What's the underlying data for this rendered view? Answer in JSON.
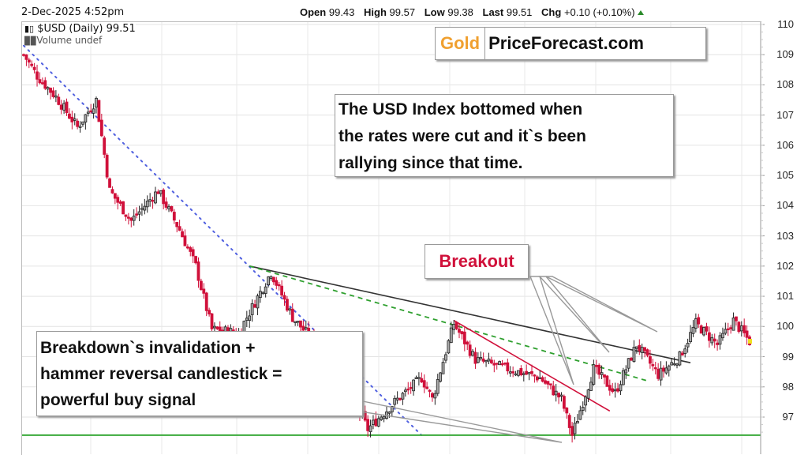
{
  "header": {
    "date": "2-Dec-2025 4:52pm",
    "open_label": "Open",
    "open": "99.43",
    "high_label": "High",
    "high": "99.57",
    "low_label": "Low",
    "low": "99.38",
    "last_label": "Last",
    "last": "99.51",
    "chg_label": "Chg",
    "chg": "+0.10 (+0.10%)"
  },
  "legend": {
    "symbol_line": "$USD (Daily) 99.51",
    "volume_line": "Volume undef"
  },
  "brand": {
    "gold": "Gold",
    "rest": "PriceForecast.com"
  },
  "annotations": {
    "note_top": [
      "The USD Index bottomed when",
      "the rates were cut and it`s been",
      "rallying since that time."
    ],
    "note_bottom": [
      "Breakdown`s invalidation +",
      "hammer reversal candlestick =",
      "powerful buy signal"
    ],
    "breakout": "Breakout"
  },
  "colors": {
    "up": "#222222",
    "down": "#d0103a",
    "brand_gold": "#f0a030",
    "support": "#3aaa3a",
    "trend_green": "#2fa02f",
    "trend_blue": "#5060e0"
  },
  "chart_data": {
    "type": "candlestick",
    "title": "$USD (Daily)",
    "last": 99.51,
    "ylabel": "",
    "ylim": [
      96.3,
      110.1
    ],
    "yticks": [
      110,
      109,
      108,
      107,
      106,
      105,
      104,
      103,
      102,
      101,
      100,
      99,
      98,
      97
    ],
    "grid": true,
    "approx_close_path": [
      {
        "i": 0,
        "v": 109.0
      },
      {
        "i": 5,
        "v": 108.3
      },
      {
        "i": 12,
        "v": 107.6
      },
      {
        "i": 20,
        "v": 106.6
      },
      {
        "i": 27,
        "v": 107.5
      },
      {
        "i": 32,
        "v": 104.5
      },
      {
        "i": 40,
        "v": 103.5
      },
      {
        "i": 50,
        "v": 104.5
      },
      {
        "i": 58,
        "v": 103.2
      },
      {
        "i": 64,
        "v": 102.0
      },
      {
        "i": 70,
        "v": 99.9
      },
      {
        "i": 80,
        "v": 99.8
      },
      {
        "i": 92,
        "v": 101.8
      },
      {
        "i": 100,
        "v": 100.3
      },
      {
        "i": 108,
        "v": 99.5
      },
      {
        "i": 118,
        "v": 98.4
      },
      {
        "i": 128,
        "v": 96.6
      },
      {
        "i": 138,
        "v": 97.5
      },
      {
        "i": 148,
        "v": 98.3
      },
      {
        "i": 152,
        "v": 97.6
      },
      {
        "i": 160,
        "v": 100.1
      },
      {
        "i": 168,
        "v": 98.9
      },
      {
        "i": 180,
        "v": 98.6
      },
      {
        "i": 192,
        "v": 98.3
      },
      {
        "i": 200,
        "v": 97.6
      },
      {
        "i": 204,
        "v": 96.4
      },
      {
        "i": 212,
        "v": 98.6
      },
      {
        "i": 220,
        "v": 97.8
      },
      {
        "i": 228,
        "v": 99.4
      },
      {
        "i": 236,
        "v": 98.4
      },
      {
        "i": 244,
        "v": 99.0
      },
      {
        "i": 250,
        "v": 100.1
      },
      {
        "i": 258,
        "v": 99.4
      },
      {
        "i": 264,
        "v": 100.2
      },
      {
        "i": 270,
        "v": 99.5
      }
    ],
    "lines": [
      {
        "name": "long-term downtrend (blue dotted)",
        "from": [
          0,
          109.3
        ],
        "to": [
          148,
          96.4
        ]
      },
      {
        "name": "black resistance line",
        "from": [
          84,
          102.0
        ],
        "to": [
          248,
          98.8
        ]
      },
      {
        "name": "green dashed trendline",
        "from": [
          84,
          102.0
        ],
        "to": [
          232,
          98.2
        ]
      },
      {
        "name": "red declining line",
        "from": [
          160,
          100.2
        ],
        "to": [
          218,
          97.2
        ]
      },
      {
        "name": "green horizontal support",
        "value": 96.4
      }
    ],
    "annotations": [
      "Breakout",
      "The USD Index bottomed when the rates were cut and it`s been rallying since that time.",
      "Breakdown`s invalidation + hammer reversal candlestick = powerful buy signal"
    ]
  }
}
